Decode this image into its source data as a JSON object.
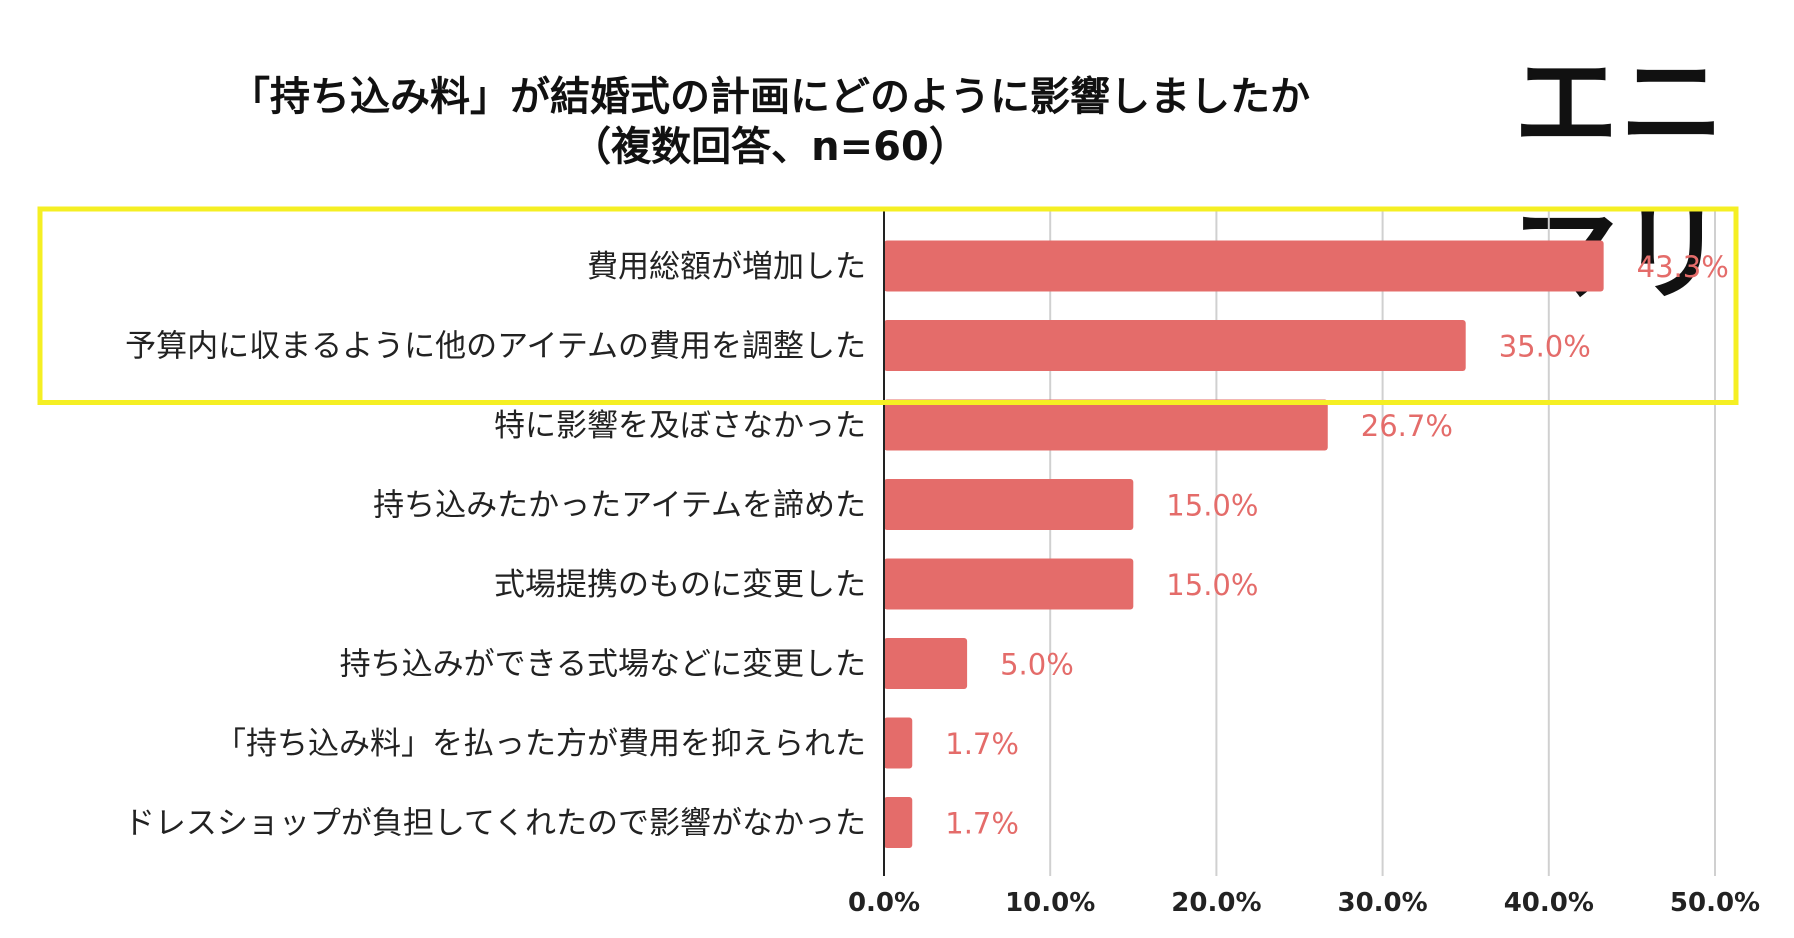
{
  "brand": {
    "logo_text": "エニマリ"
  },
  "chart_data": {
    "type": "bar",
    "orientation": "horizontal",
    "title": "「持ち込み料」が結婚式の計画にどのように影響しましたか",
    "subtitle": "（複数回答、n=60）",
    "categories": [
      "費用総額が増加した",
      "予算内に収まるように他のアイテムの費用を調整した",
      "特に影響を及ぼさなかった",
      "持ち込みたかったアイテムを諦めた",
      "式場提携のものに変更した",
      "持ち込みができる式場などに変更した",
      "「持ち込み料」を払った方が費用を抑えられた",
      "ドレスショップが負担してくれたので影響がなかった"
    ],
    "values": [
      43.3,
      35.0,
      26.7,
      15.0,
      15.0,
      5.0,
      1.7,
      1.7
    ],
    "value_labels": [
      "43.3%",
      "35.0%",
      "26.7%",
      "15.0%",
      "15.0%",
      "5.0%",
      "1.7%",
      "1.7%"
    ],
    "xlim": [
      0,
      50
    ],
    "xticks": [
      0,
      10,
      20,
      30,
      40,
      50
    ],
    "xtick_labels": [
      "0.0%",
      "10.0%",
      "20.0%",
      "30.0%",
      "40.0%",
      "50.0%"
    ],
    "grid": true,
    "highlighted_categories": [
      0,
      1
    ],
    "colors": {
      "bar": "#e46c6a",
      "value_label": "#e46c6a",
      "highlight": "#f5ef23",
      "grid": "#d0d0d0",
      "axis": "#222222"
    }
  }
}
